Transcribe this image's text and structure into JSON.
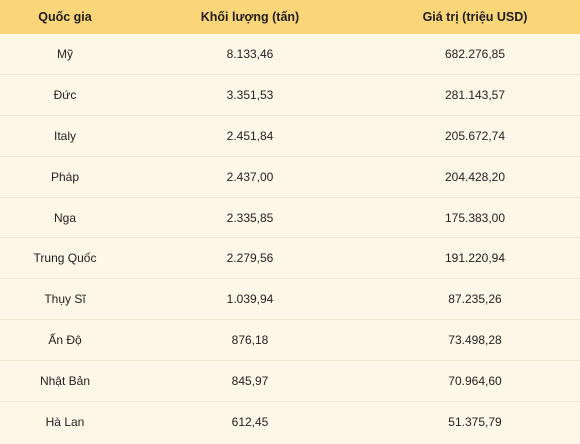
{
  "table": {
    "columns": [
      "Quốc gia",
      "Khối lượng (tấn)",
      "Giá trị (triệu USD)"
    ],
    "rows": [
      [
        "Mỹ",
        "8.133,46",
        "682.276,85"
      ],
      [
        "Đức",
        "3.351,53",
        "281.143,57"
      ],
      [
        "Italy",
        "2.451,84",
        "205.672,74"
      ],
      [
        "Pháp",
        "2.437,00",
        "204.428,20"
      ],
      [
        "Nga",
        "2.335,85",
        "175.383,00"
      ],
      [
        "Trung Quốc",
        "2.279,56",
        "191.220,94"
      ],
      [
        "Thụy Sĩ",
        "1.039,94",
        "87.235,26"
      ],
      [
        "Ấn Độ",
        "876,18",
        "73.498,28"
      ],
      [
        "Nhật Bản",
        "845,97",
        "70.964,60"
      ],
      [
        "Hà Lan",
        "612,45",
        "51.375,79"
      ]
    ]
  },
  "colors": {
    "header_bg": "#fbd679",
    "body_bg": "#fdf7e8",
    "row_divider": "#efe6cf"
  }
}
